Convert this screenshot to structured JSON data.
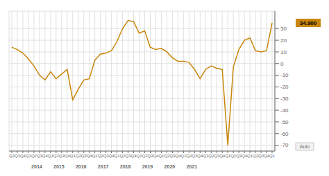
{
  "chart_data": {
    "type": "line",
    "categories": [
      "Q2",
      "Q3",
      "Q4",
      "Q1",
      "Q2",
      "Q3",
      "Q4",
      "Q1",
      "Q2",
      "Q3",
      "Q4",
      "Q1",
      "Q2",
      "Q3",
      "Q4",
      "Q1",
      "Q2",
      "Q3",
      "Q4",
      "Q1",
      "Q2",
      "Q3",
      "Q4",
      "Q1",
      "Q2",
      "Q3",
      "Q4",
      "Q1",
      "Q2",
      "Q3",
      "Q4",
      "Q1",
      "Q2",
      "Q3",
      "Q4",
      "Q1",
      "Q2",
      "Q3",
      "Q4",
      "Q1",
      "Q2",
      "Q3",
      "Q4",
      "Q1",
      "Q2",
      "Q3",
      "Q4",
      "Q1"
    ],
    "values": [
      14,
      12,
      9,
      4,
      -2,
      -10,
      -14,
      -7,
      -13,
      -9,
      -5,
      -31,
      -22,
      -14,
      -13,
      3,
      8,
      9,
      11,
      19,
      30,
      37,
      36,
      26,
      28,
      14,
      12,
      13,
      10,
      5,
      2,
      2,
      1,
      -5,
      -13,
      -5,
      -2,
      -4,
      -5,
      -70,
      -3,
      12,
      20,
      22,
      11,
      10,
      11,
      34.9
    ],
    "color": "#c8860a",
    "ylim": [
      -75,
      45
    ],
    "yticks": [
      -70,
      -60,
      -50,
      -40,
      -30,
      -20,
      -10,
      0,
      10,
      20,
      30
    ],
    "grid": true,
    "annotations": [
      {
        "text": "2014",
        "index": 3
      },
      {
        "text": "2015",
        "index": 7
      },
      {
        "text": "2016",
        "index": 11
      },
      {
        "text": "2017",
        "index": 15
      },
      {
        "text": "2018",
        "index": 19
      },
      {
        "text": "2019",
        "index": 23
      },
      {
        "text": "2020",
        "index": 27
      },
      {
        "text": "2021",
        "index": 31
      },
      {
        "text": "34.900",
        "value": 34.9,
        "color": "#c8860a"
      },
      {
        "text": "Auto"
      }
    ]
  }
}
